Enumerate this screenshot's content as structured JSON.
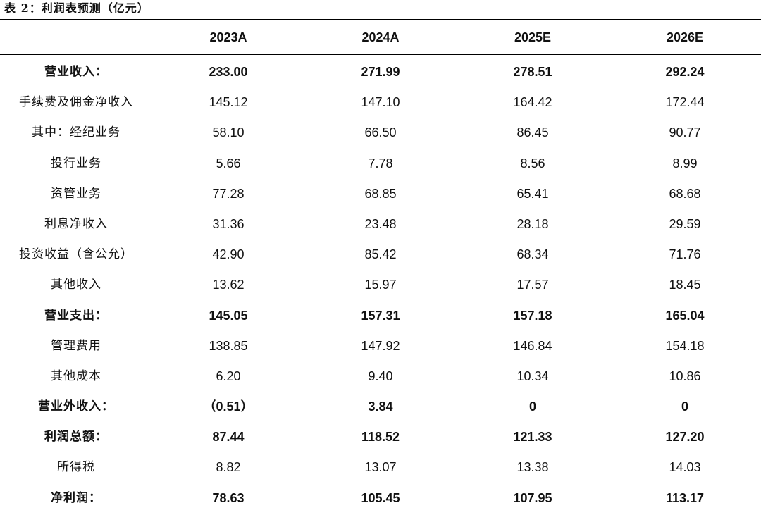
{
  "caption": "表 2：利润表预测（亿元）",
  "table": {
    "headers": [
      "",
      "2023A",
      "2024A",
      "2025E",
      "2026E"
    ],
    "rows": [
      {
        "label": "营业收入：",
        "values": [
          "233.00",
          "271.99",
          "278.51",
          "292.24"
        ],
        "bold": true
      },
      {
        "label": "手续费及佣金净收入",
        "values": [
          "145.12",
          "147.10",
          "164.42",
          "172.44"
        ],
        "bold": false
      },
      {
        "label": "其中：经纪业务",
        "values": [
          "58.10",
          "66.50",
          "86.45",
          "90.77"
        ],
        "bold": false
      },
      {
        "label": "投行业务",
        "values": [
          "5.66",
          "7.78",
          "8.56",
          "8.99"
        ],
        "bold": false
      },
      {
        "label": "资管业务",
        "values": [
          "77.28",
          "68.85",
          "65.41",
          "68.68"
        ],
        "bold": false
      },
      {
        "label": "利息净收入",
        "values": [
          "31.36",
          "23.48",
          "28.18",
          "29.59"
        ],
        "bold": false
      },
      {
        "label": "投资收益（含公允）",
        "values": [
          "42.90",
          "85.42",
          "68.34",
          "71.76"
        ],
        "bold": false
      },
      {
        "label": "其他收入",
        "values": [
          "13.62",
          "15.97",
          "17.57",
          "18.45"
        ],
        "bold": false
      },
      {
        "label": "营业支出：",
        "values": [
          "145.05",
          "157.31",
          "157.18",
          "165.04"
        ],
        "bold": true
      },
      {
        "label": "管理费用",
        "values": [
          "138.85",
          "147.92",
          "146.84",
          "154.18"
        ],
        "bold": false
      },
      {
        "label": "其他成本",
        "values": [
          "6.20",
          "9.40",
          "10.34",
          "10.86"
        ],
        "bold": false
      },
      {
        "label": "营业外收入：",
        "values": [
          "（0.51）",
          "3.84",
          "0",
          "0"
        ],
        "bold": true
      },
      {
        "label": "利润总额：",
        "values": [
          "87.44",
          "118.52",
          "121.33",
          "127.20"
        ],
        "bold": true
      },
      {
        "label": "所得税",
        "values": [
          "8.82",
          "13.07",
          "13.38",
          "14.03"
        ],
        "bold": false
      },
      {
        "label": "净利润：",
        "values": [
          "78.63",
          "105.45",
          "107.95",
          "113.17"
        ],
        "bold": true
      }
    ]
  }
}
